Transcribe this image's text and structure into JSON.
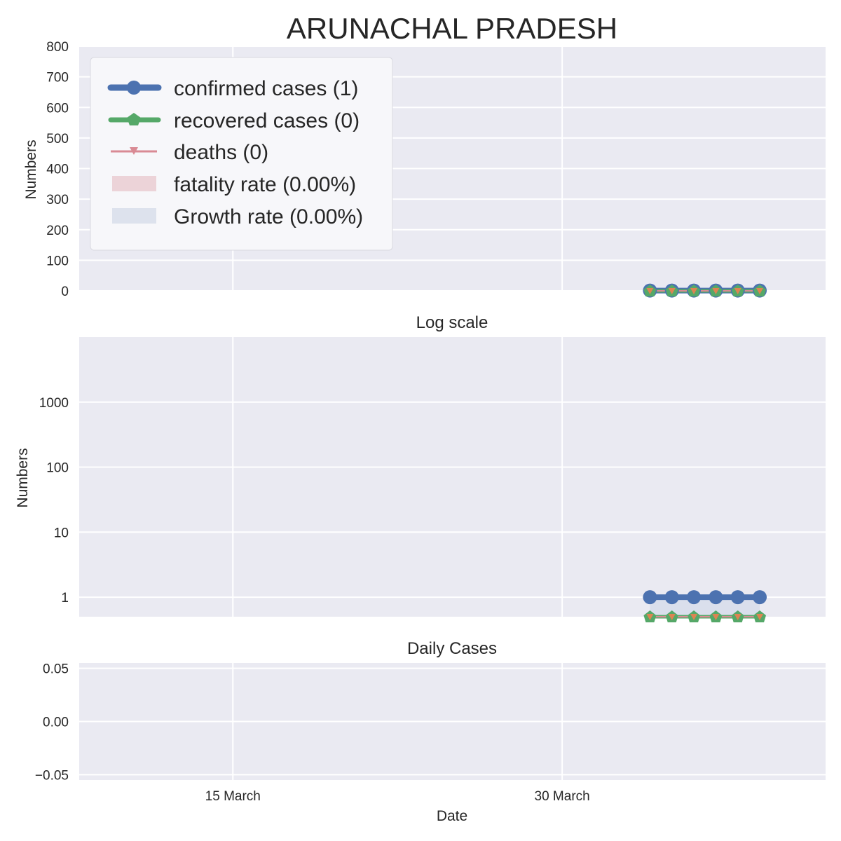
{
  "chart_data": {
    "title": "ARUNACHAL PRADESH",
    "xlabel": "Date",
    "x_ticks": [
      {
        "date": "2020-03-15",
        "label": "15 March"
      },
      {
        "date": "2020-03-30",
        "label": "30 March"
      }
    ],
    "x_range": [
      "2020-03-08",
      "2020-04-11"
    ],
    "dates": [
      "2020-04-03",
      "2020-04-04",
      "2020-04-05",
      "2020-04-06",
      "2020-04-07",
      "2020-04-08"
    ],
    "colors": {
      "confirmed": "#4c72b0",
      "recovered": "#55a868",
      "deaths": "#dd8452",
      "deaths_line": "#d98a94",
      "fatality_fill": "#e8c9cf",
      "growth_fill": "#d6dcea",
      "axes_bg": "#eaeaf2",
      "grid": "#ffffff",
      "text": "#262626"
    },
    "panels": [
      {
        "type": "line",
        "subtitle": "",
        "ylabel": "Numbers",
        "ylim": [
          0,
          800
        ],
        "yscale": "linear",
        "yticks": [
          "0",
          "100",
          "200",
          "300",
          "400",
          "500",
          "600",
          "700",
          "800"
        ],
        "grid": true,
        "legend": {
          "position": "top-left",
          "entries": [
            "confirmed cases (1)",
            "recovered cases (0)",
            "deaths (0)",
            "fatality rate (0.00%)",
            "Growth rate (0.00%)"
          ]
        },
        "series": [
          {
            "key": "confirmed",
            "values": [
              1,
              1,
              1,
              1,
              1,
              1
            ]
          },
          {
            "key": "recovered",
            "values": [
              0,
              0,
              0,
              0,
              0,
              0
            ]
          },
          {
            "key": "deaths",
            "values": [
              0,
              0,
              0,
              0,
              0,
              0
            ]
          }
        ]
      },
      {
        "type": "line",
        "subtitle": "Log scale",
        "ylabel": "Numbers",
        "yscale": "log",
        "ylim": [
          0.5,
          10000
        ],
        "yticks": [
          "1",
          "10",
          "100",
          "1000"
        ],
        "grid": true,
        "series": [
          {
            "key": "confirmed",
            "values": [
              1,
              1,
              1,
              1,
              1,
              1
            ]
          },
          {
            "key": "recovered",
            "values": [
              0.5,
              0.5,
              0.5,
              0.5,
              0.5,
              0.5
            ]
          },
          {
            "key": "deaths",
            "values": [
              0.5,
              0.5,
              0.5,
              0.5,
              0.5,
              0.5
            ]
          }
        ]
      },
      {
        "type": "bar",
        "subtitle": "Daily Cases",
        "ylabel": "",
        "yscale": "linear",
        "ylim": [
          -0.055,
          0.055
        ],
        "yticks": [
          "0.05",
          "0.00",
          "−0.05"
        ],
        "grid": true,
        "series": []
      }
    ]
  }
}
